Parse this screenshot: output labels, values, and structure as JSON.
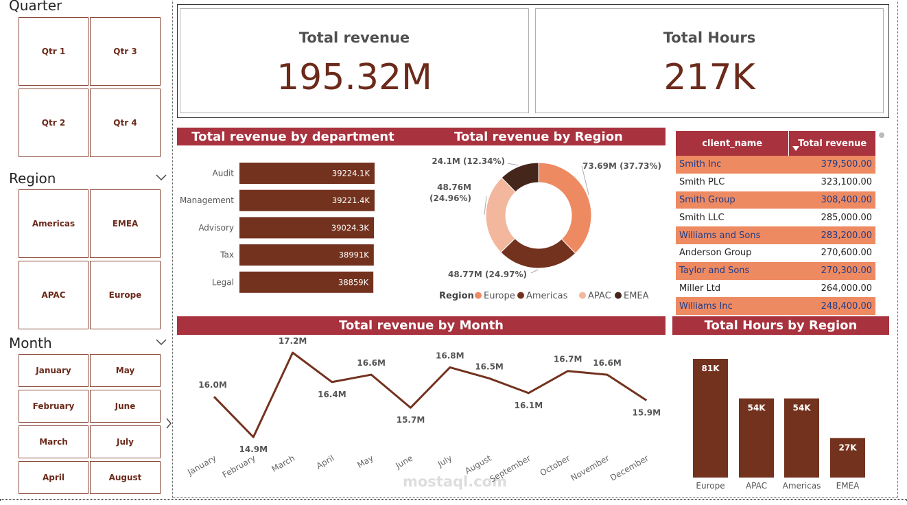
{
  "slicers": {
    "quarter": {
      "title": "Quarter",
      "items": [
        "Qtr 1",
        "Qtr 3",
        "Qtr 2",
        "Qtr 4"
      ]
    },
    "region": {
      "title": "Region",
      "items": [
        "Americas",
        "EMEA",
        "APAC",
        "Europe"
      ]
    },
    "month": {
      "title": "Month",
      "items": [
        "January",
        "May",
        "February",
        "June",
        "March",
        "July",
        "April",
        "August"
      ]
    }
  },
  "kpis": {
    "revenue": {
      "title": "Total revenue",
      "value": "195.32M"
    },
    "hours": {
      "title": "Total Hours",
      "value": "217K"
    }
  },
  "colors": {
    "accent": "#a8323e",
    "bar": "#73321e",
    "europe": "#ee8a62",
    "americas": "#73321e",
    "apac": "#f2b79d",
    "emea": "#45261a",
    "row_alt": "#ee8a62"
  },
  "table": {
    "columns": [
      "client_name",
      "Total revenue"
    ],
    "rows": [
      [
        "Smith Inc",
        "379,500.00"
      ],
      [
        "Smith PLC",
        "323,100.00"
      ],
      [
        "Smith Group",
        "308,400.00"
      ],
      [
        "Smith LLC",
        "285,000.00"
      ],
      [
        "Williams and Sons",
        "283,200.00"
      ],
      [
        "Anderson Group",
        "270,600.00"
      ],
      [
        "Taylor and Sons",
        "270,300.00"
      ],
      [
        "Miller Ltd",
        "264,000.00"
      ],
      [
        "Williams Inc",
        "248,400.00"
      ]
    ]
  },
  "chart_data": [
    {
      "type": "bar",
      "orientation": "horizontal",
      "title": "Total revenue by department",
      "categories": [
        "Audit",
        "Management",
        "Advisory",
        "Tax",
        "Legal"
      ],
      "values": [
        39224.1,
        39221.4,
        39024.3,
        38991,
        38859
      ],
      "labels": [
        "39224.1K",
        "39221.4K",
        "39024.3K",
        "38991K",
        "38859K"
      ],
      "unit": "K"
    },
    {
      "type": "pie",
      "variant": "donut",
      "title": "Total revenue by Region",
      "legend_title": "Region",
      "legend_position": "bottom",
      "categories": [
        "Europe",
        "Americas",
        "APAC",
        "EMEA"
      ],
      "values": [
        73.69,
        48.77,
        48.76,
        24.1
      ],
      "labels": [
        "73.69M (37.73%)",
        "48.77M (24.97%)",
        "48.76M (24.96%)",
        "24.1M (12.34%)"
      ]
    },
    {
      "type": "line",
      "title": "Total revenue by Month",
      "x": [
        "January",
        "February",
        "March",
        "April",
        "May",
        "June",
        "July",
        "August",
        "September",
        "October",
        "November",
        "December"
      ],
      "values": [
        16.0,
        14.9,
        17.2,
        16.4,
        16.6,
        15.7,
        16.8,
        16.5,
        16.1,
        16.7,
        16.6,
        15.9
      ],
      "labels": [
        "16.0M",
        "14.9M",
        "17.2M",
        "16.4M",
        "16.6M",
        "15.7M",
        "16.8M",
        "16.5M",
        "16.1M",
        "16.7M",
        "16.6M",
        "15.9M"
      ]
    },
    {
      "type": "bar",
      "title": "Total Hours by Region",
      "categories": [
        "Europe",
        "APAC",
        "Americas",
        "EMEA"
      ],
      "values": [
        81,
        54,
        54,
        27
      ],
      "labels": [
        "81K",
        "54K",
        "54K",
        "27K"
      ],
      "unit": "K"
    }
  ],
  "watermark": {
    "text": "mostaql.com"
  }
}
